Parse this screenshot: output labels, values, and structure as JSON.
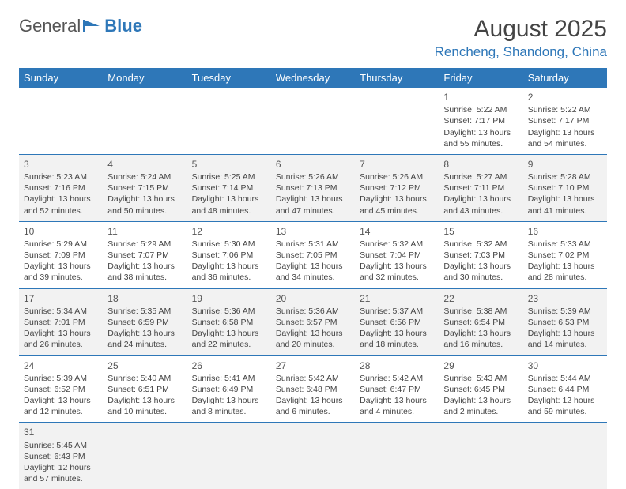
{
  "logo": {
    "text1": "General",
    "text2": "Blue"
  },
  "title": "August 2025",
  "location": "Rencheng, Shandong, China",
  "colors": {
    "brand": "#2e77b8",
    "header_bg": "#2e77b8",
    "header_text": "#ffffff",
    "alt_row_bg": "#f2f2f2",
    "text": "#444444"
  },
  "weekdays": [
    "Sunday",
    "Monday",
    "Tuesday",
    "Wednesday",
    "Thursday",
    "Friday",
    "Saturday"
  ],
  "weeks": [
    [
      null,
      null,
      null,
      null,
      null,
      {
        "d": "1",
        "sr": "Sunrise: 5:22 AM",
        "ss": "Sunset: 7:17 PM",
        "dl": "Daylight: 13 hours and 55 minutes."
      },
      {
        "d": "2",
        "sr": "Sunrise: 5:22 AM",
        "ss": "Sunset: 7:17 PM",
        "dl": "Daylight: 13 hours and 54 minutes."
      }
    ],
    [
      {
        "d": "3",
        "sr": "Sunrise: 5:23 AM",
        "ss": "Sunset: 7:16 PM",
        "dl": "Daylight: 13 hours and 52 minutes."
      },
      {
        "d": "4",
        "sr": "Sunrise: 5:24 AM",
        "ss": "Sunset: 7:15 PM",
        "dl": "Daylight: 13 hours and 50 minutes."
      },
      {
        "d": "5",
        "sr": "Sunrise: 5:25 AM",
        "ss": "Sunset: 7:14 PM",
        "dl": "Daylight: 13 hours and 48 minutes."
      },
      {
        "d": "6",
        "sr": "Sunrise: 5:26 AM",
        "ss": "Sunset: 7:13 PM",
        "dl": "Daylight: 13 hours and 47 minutes."
      },
      {
        "d": "7",
        "sr": "Sunrise: 5:26 AM",
        "ss": "Sunset: 7:12 PM",
        "dl": "Daylight: 13 hours and 45 minutes."
      },
      {
        "d": "8",
        "sr": "Sunrise: 5:27 AM",
        "ss": "Sunset: 7:11 PM",
        "dl": "Daylight: 13 hours and 43 minutes."
      },
      {
        "d": "9",
        "sr": "Sunrise: 5:28 AM",
        "ss": "Sunset: 7:10 PM",
        "dl": "Daylight: 13 hours and 41 minutes."
      }
    ],
    [
      {
        "d": "10",
        "sr": "Sunrise: 5:29 AM",
        "ss": "Sunset: 7:09 PM",
        "dl": "Daylight: 13 hours and 39 minutes."
      },
      {
        "d": "11",
        "sr": "Sunrise: 5:29 AM",
        "ss": "Sunset: 7:07 PM",
        "dl": "Daylight: 13 hours and 38 minutes."
      },
      {
        "d": "12",
        "sr": "Sunrise: 5:30 AM",
        "ss": "Sunset: 7:06 PM",
        "dl": "Daylight: 13 hours and 36 minutes."
      },
      {
        "d": "13",
        "sr": "Sunrise: 5:31 AM",
        "ss": "Sunset: 7:05 PM",
        "dl": "Daylight: 13 hours and 34 minutes."
      },
      {
        "d": "14",
        "sr": "Sunrise: 5:32 AM",
        "ss": "Sunset: 7:04 PM",
        "dl": "Daylight: 13 hours and 32 minutes."
      },
      {
        "d": "15",
        "sr": "Sunrise: 5:32 AM",
        "ss": "Sunset: 7:03 PM",
        "dl": "Daylight: 13 hours and 30 minutes."
      },
      {
        "d": "16",
        "sr": "Sunrise: 5:33 AM",
        "ss": "Sunset: 7:02 PM",
        "dl": "Daylight: 13 hours and 28 minutes."
      }
    ],
    [
      {
        "d": "17",
        "sr": "Sunrise: 5:34 AM",
        "ss": "Sunset: 7:01 PM",
        "dl": "Daylight: 13 hours and 26 minutes."
      },
      {
        "d": "18",
        "sr": "Sunrise: 5:35 AM",
        "ss": "Sunset: 6:59 PM",
        "dl": "Daylight: 13 hours and 24 minutes."
      },
      {
        "d": "19",
        "sr": "Sunrise: 5:36 AM",
        "ss": "Sunset: 6:58 PM",
        "dl": "Daylight: 13 hours and 22 minutes."
      },
      {
        "d": "20",
        "sr": "Sunrise: 5:36 AM",
        "ss": "Sunset: 6:57 PM",
        "dl": "Daylight: 13 hours and 20 minutes."
      },
      {
        "d": "21",
        "sr": "Sunrise: 5:37 AM",
        "ss": "Sunset: 6:56 PM",
        "dl": "Daylight: 13 hours and 18 minutes."
      },
      {
        "d": "22",
        "sr": "Sunrise: 5:38 AM",
        "ss": "Sunset: 6:54 PM",
        "dl": "Daylight: 13 hours and 16 minutes."
      },
      {
        "d": "23",
        "sr": "Sunrise: 5:39 AM",
        "ss": "Sunset: 6:53 PM",
        "dl": "Daylight: 13 hours and 14 minutes."
      }
    ],
    [
      {
        "d": "24",
        "sr": "Sunrise: 5:39 AM",
        "ss": "Sunset: 6:52 PM",
        "dl": "Daylight: 13 hours and 12 minutes."
      },
      {
        "d": "25",
        "sr": "Sunrise: 5:40 AM",
        "ss": "Sunset: 6:51 PM",
        "dl": "Daylight: 13 hours and 10 minutes."
      },
      {
        "d": "26",
        "sr": "Sunrise: 5:41 AM",
        "ss": "Sunset: 6:49 PM",
        "dl": "Daylight: 13 hours and 8 minutes."
      },
      {
        "d": "27",
        "sr": "Sunrise: 5:42 AM",
        "ss": "Sunset: 6:48 PM",
        "dl": "Daylight: 13 hours and 6 minutes."
      },
      {
        "d": "28",
        "sr": "Sunrise: 5:42 AM",
        "ss": "Sunset: 6:47 PM",
        "dl": "Daylight: 13 hours and 4 minutes."
      },
      {
        "d": "29",
        "sr": "Sunrise: 5:43 AM",
        "ss": "Sunset: 6:45 PM",
        "dl": "Daylight: 13 hours and 2 minutes."
      },
      {
        "d": "30",
        "sr": "Sunrise: 5:44 AM",
        "ss": "Sunset: 6:44 PM",
        "dl": "Daylight: 12 hours and 59 minutes."
      }
    ],
    [
      {
        "d": "31",
        "sr": "Sunrise: 5:45 AM",
        "ss": "Sunset: 6:43 PM",
        "dl": "Daylight: 12 hours and 57 minutes."
      },
      null,
      null,
      null,
      null,
      null,
      null
    ]
  ]
}
